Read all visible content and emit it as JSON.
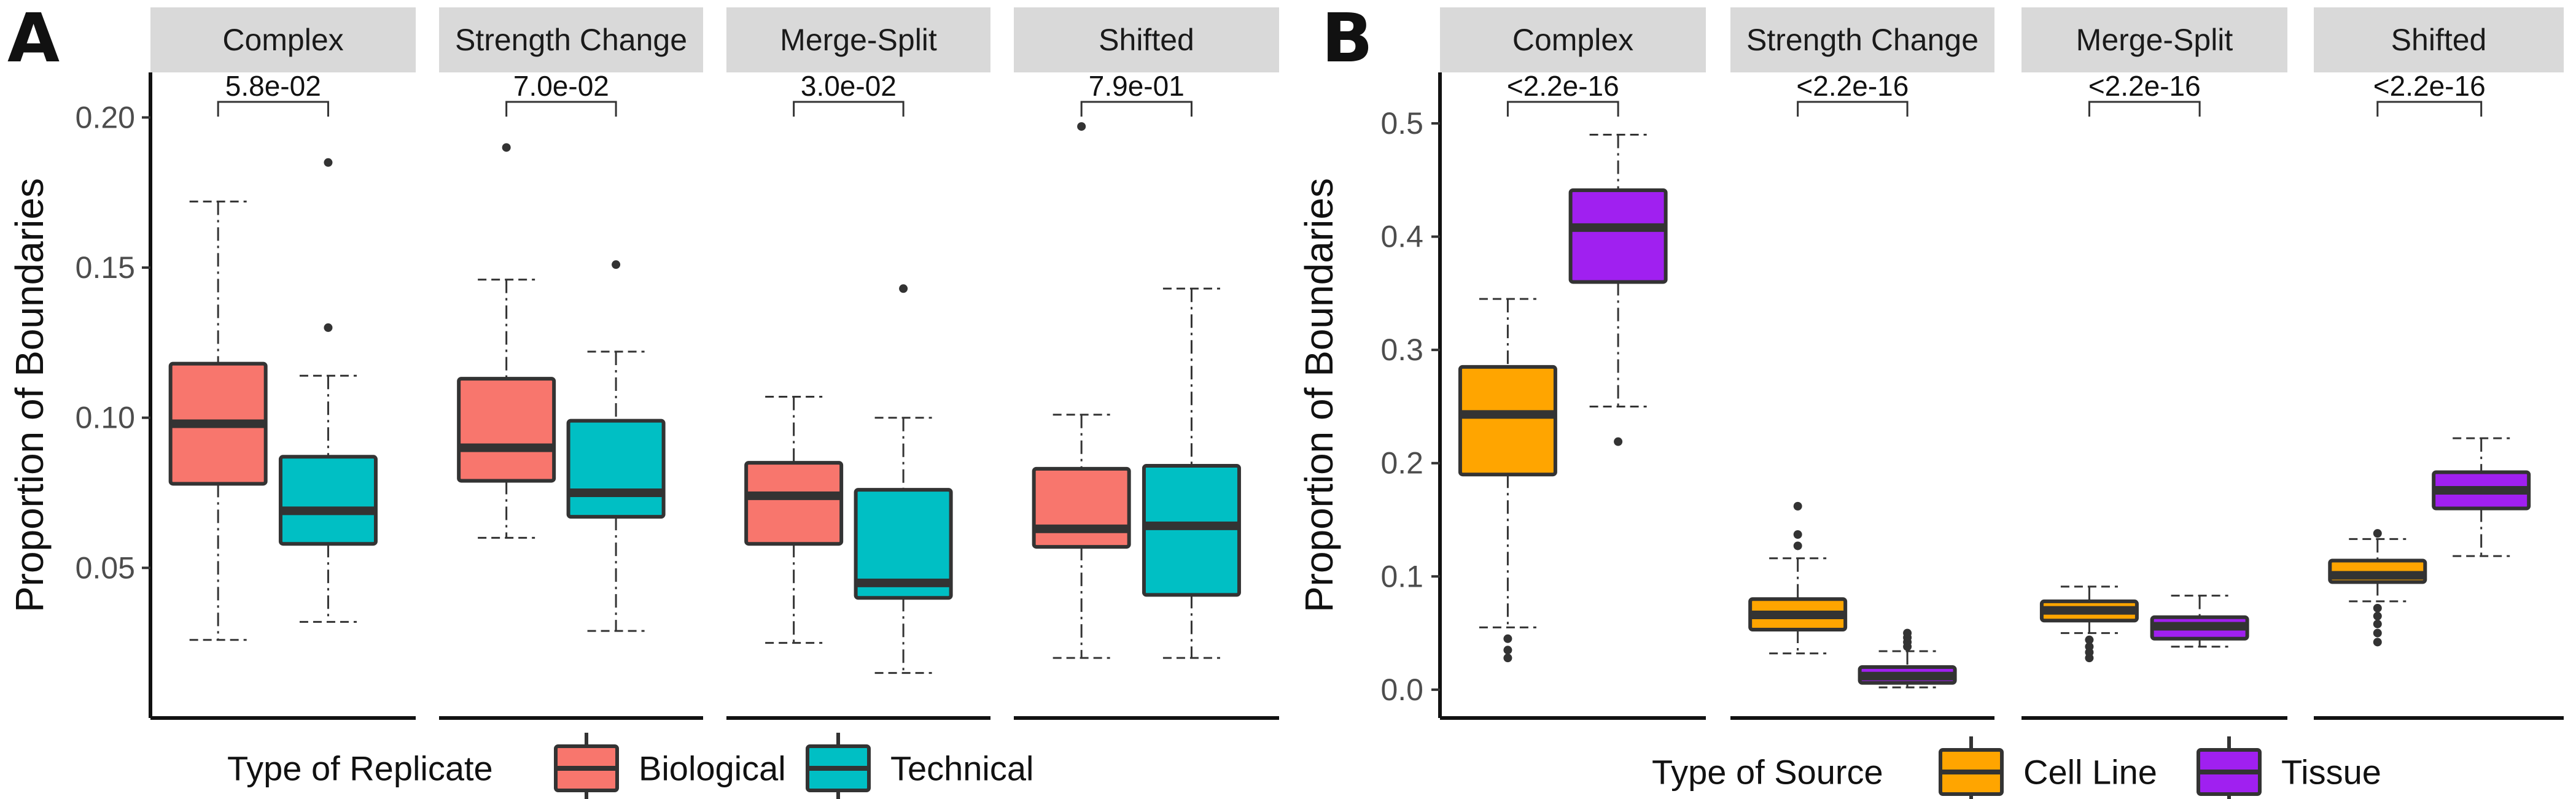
{
  "chart_data": [
    {
      "type": "box",
      "panel": "A",
      "ylabel": "Proportion of Boundaries",
      "ylim": [
        0.0,
        0.215
      ],
      "yticks": [
        0.05,
        0.1,
        0.15,
        0.2
      ],
      "ytick_labels": [
        "0.05",
        "0.10",
        "0.15",
        "0.20"
      ],
      "facets": [
        "Complex",
        "Strength Change",
        "Merge-Split",
        "Shifted"
      ],
      "pvalues": [
        "5.8e-02",
        "7.0e-02",
        "3.0e-02",
        "7.9e-01"
      ],
      "legend": {
        "title": "Type of Replicate",
        "position": "bottom",
        "items": [
          "Biological",
          "Technical"
        ]
      },
      "colors": {
        "Biological": "#F8766D",
        "Technical": "#00BFC4"
      },
      "series": [
        {
          "name": "Biological",
          "boxes": [
            {
              "facet": "Complex",
              "min": 0.026,
              "q1": 0.078,
              "median": 0.098,
              "q3": 0.118,
              "max": 0.172,
              "outliers": []
            },
            {
              "facet": "Strength Change",
              "min": 0.06,
              "q1": 0.079,
              "median": 0.09,
              "q3": 0.113,
              "max": 0.146,
              "outliers": [
                0.19
              ]
            },
            {
              "facet": "Merge-Split",
              "min": 0.025,
              "q1": 0.058,
              "median": 0.074,
              "q3": 0.085,
              "max": 0.107,
              "outliers": []
            },
            {
              "facet": "Shifted",
              "min": 0.02,
              "q1": 0.057,
              "median": 0.063,
              "q3": 0.083,
              "max": 0.101,
              "outliers": [
                0.197
              ]
            }
          ]
        },
        {
          "name": "Technical",
          "boxes": [
            {
              "facet": "Complex",
              "min": 0.032,
              "q1": 0.058,
              "median": 0.069,
              "q3": 0.087,
              "max": 0.114,
              "outliers": [
                0.13,
                0.185
              ]
            },
            {
              "facet": "Strength Change",
              "min": 0.029,
              "q1": 0.067,
              "median": 0.075,
              "q3": 0.099,
              "max": 0.122,
              "outliers": [
                0.151
              ]
            },
            {
              "facet": "Merge-Split",
              "min": 0.015,
              "q1": 0.04,
              "median": 0.045,
              "q3": 0.076,
              "max": 0.1,
              "outliers": [
                0.143
              ]
            },
            {
              "facet": "Shifted",
              "min": 0.02,
              "q1": 0.041,
              "median": 0.064,
              "q3": 0.084,
              "max": 0.143,
              "outliers": []
            }
          ]
        }
      ]
    },
    {
      "type": "box",
      "panel": "B",
      "ylabel": "Proportion of Boundaries",
      "ylim": [
        -0.025,
        0.545
      ],
      "yticks": [
        0.0,
        0.1,
        0.2,
        0.3,
        0.4,
        0.5
      ],
      "ytick_labels": [
        "0.0",
        "0.1",
        "0.2",
        "0.3",
        "0.4",
        "0.5"
      ],
      "facets": [
        "Complex",
        "Strength Change",
        "Merge-Split",
        "Shifted"
      ],
      "pvalues": [
        "<2.2e-16",
        "<2.2e-16",
        "<2.2e-16",
        "<2.2e-16"
      ],
      "legend": {
        "title": "Type of Source",
        "position": "bottom",
        "items": [
          "Cell Line",
          "Tissue"
        ]
      },
      "colors": {
        "Cell Line": "#FFA500",
        "Tissue": "#A020F0"
      },
      "series": [
        {
          "name": "Cell Line",
          "boxes": [
            {
              "facet": "Complex",
              "min": 0.055,
              "q1": 0.19,
              "median": 0.243,
              "q3": 0.285,
              "max": 0.345,
              "outliers": [
                0.045,
                0.035,
                0.028
              ]
            },
            {
              "facet": "Strength Change",
              "min": 0.032,
              "q1": 0.053,
              "median": 0.066,
              "q3": 0.08,
              "max": 0.116,
              "outliers": [
                0.127,
                0.137,
                0.162
              ]
            },
            {
              "facet": "Merge-Split",
              "min": 0.05,
              "q1": 0.061,
              "median": 0.07,
              "q3": 0.078,
              "max": 0.091,
              "outliers": [
                0.044,
                0.038,
                0.033,
                0.028
              ]
            },
            {
              "facet": "Shifted",
              "min": 0.078,
              "q1": 0.095,
              "median": 0.101,
              "q3": 0.114,
              "max": 0.133,
              "outliers": [
                0.138,
                0.072,
                0.065,
                0.058,
                0.05,
                0.042
              ]
            }
          ]
        },
        {
          "name": "Tissue",
          "boxes": [
            {
              "facet": "Complex",
              "min": 0.25,
              "q1": 0.36,
              "median": 0.408,
              "q3": 0.441,
              "max": 0.49,
              "outliers": [
                0.219
              ]
            },
            {
              "facet": "Strength Change",
              "min": 0.002,
              "q1": 0.006,
              "median": 0.012,
              "q3": 0.02,
              "max": 0.034,
              "outliers": [
                0.038,
                0.042,
                0.046,
                0.05
              ]
            },
            {
              "facet": "Merge-Split",
              "min": 0.038,
              "q1": 0.045,
              "median": 0.056,
              "q3": 0.064,
              "max": 0.083,
              "outliers": []
            },
            {
              "facet": "Shifted",
              "min": 0.118,
              "q1": 0.16,
              "median": 0.176,
              "q3": 0.192,
              "max": 0.222,
              "outliers": []
            }
          ]
        }
      ]
    }
  ]
}
